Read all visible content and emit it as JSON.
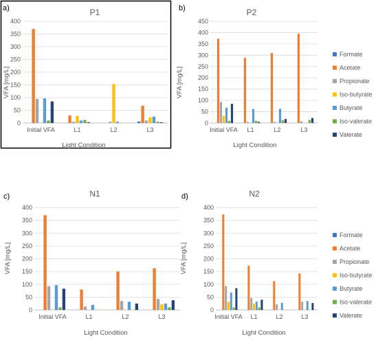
{
  "colors": {
    "Formate": "#4472C4",
    "Acetate": "#ED7D31",
    "Propionate": "#A5A5A5",
    "Iso-butyrate": "#FFC000",
    "Butyrate": "#5B9BD5",
    "Iso-valerate": "#70AD47",
    "Valerate": "#264478"
  },
  "chart_data": [
    {
      "type": "bar",
      "panel_label": "a)",
      "title": "P1",
      "xlabel": "Light Condition",
      "ylabel": "VFA [mg/L]",
      "ylim": [
        0,
        400
      ],
      "yticks": [
        "0",
        "50",
        "100",
        "150",
        "200",
        "250",
        "300",
        "350",
        "400"
      ],
      "categories": [
        "Initial VFA",
        "L1",
        "L2",
        "L3"
      ],
      "legend": "none",
      "series": [
        {
          "name": "Formate",
          "values": [
            0,
            0,
            0,
            6
          ]
        },
        {
          "name": "Acetate",
          "values": [
            370,
            30,
            0,
            68
          ]
        },
        {
          "name": "Propionate",
          "values": [
            95,
            5,
            5,
            10
          ]
        },
        {
          "name": "Iso-butyrate",
          "values": [
            0,
            28,
            153,
            22
          ]
        },
        {
          "name": "Butyrate",
          "values": [
            97,
            10,
            5,
            25
          ]
        },
        {
          "name": "Iso-valerate",
          "values": [
            10,
            12,
            0,
            5
          ]
        },
        {
          "name": "Valerate",
          "values": [
            85,
            3,
            0,
            3
          ]
        }
      ]
    },
    {
      "type": "bar",
      "panel_label": "b)",
      "title": "P2",
      "xlabel": "Light Condition",
      "ylabel": "VFA [mg/L]",
      "ylim": [
        0,
        450
      ],
      "yticks": [
        "0",
        "50",
        "100",
        "150",
        "200",
        "250",
        "300",
        "350",
        "400",
        "450"
      ],
      "categories": [
        "Initial VFA",
        "L1",
        "L2",
        "L3"
      ],
      "legend": "right",
      "series": [
        {
          "name": "Formate",
          "values": [
            0,
            0,
            0,
            0
          ]
        },
        {
          "name": "Acetate",
          "values": [
            373,
            288,
            310,
            395
          ]
        },
        {
          "name": "Propionate",
          "values": [
            93,
            5,
            5,
            8
          ]
        },
        {
          "name": "Iso-butyrate",
          "values": [
            32,
            0,
            0,
            0
          ]
        },
        {
          "name": "Butyrate",
          "values": [
            68,
            62,
            63,
            0
          ]
        },
        {
          "name": "Iso-valerate",
          "values": [
            10,
            10,
            12,
            14
          ]
        },
        {
          "name": "Valerate",
          "values": [
            85,
            5,
            18,
            22
          ]
        }
      ]
    },
    {
      "type": "bar",
      "panel_label": "c)",
      "title": "N1",
      "xlabel": "Light Condition",
      "ylabel": "VFA [mg/L]",
      "ylim": [
        0,
        400
      ],
      "yticks": [
        "0",
        "50",
        "100",
        "150",
        "200",
        "250",
        "300",
        "350",
        "400"
      ],
      "categories": [
        "Initial VFA",
        "L1",
        "L2",
        "L3"
      ],
      "legend": "none",
      "series": [
        {
          "name": "Formate",
          "values": [
            0,
            0,
            0,
            0
          ]
        },
        {
          "name": "Acetate",
          "values": [
            370,
            80,
            150,
            163
          ]
        },
        {
          "name": "Propionate",
          "values": [
            93,
            13,
            35,
            43
          ]
        },
        {
          "name": "Iso-butyrate",
          "values": [
            0,
            0,
            0,
            22
          ]
        },
        {
          "name": "Butyrate",
          "values": [
            97,
            20,
            32,
            25
          ]
        },
        {
          "name": "Iso-valerate",
          "values": [
            10,
            0,
            0,
            10
          ]
        },
        {
          "name": "Valerate",
          "values": [
            83,
            0,
            25,
            38
          ]
        }
      ]
    },
    {
      "type": "bar",
      "panel_label": "d)",
      "title": "N2",
      "xlabel": "Light Condition",
      "ylabel": "VFA [mg/L]",
      "ylim": [
        0,
        400
      ],
      "yticks": [
        "0",
        "50",
        "100",
        "150",
        "200",
        "250",
        "300",
        "350",
        "400"
      ],
      "categories": [
        "Initial VFA",
        "L1",
        "L2",
        "L3"
      ],
      "legend": "right",
      "series": [
        {
          "name": "Formate",
          "values": [
            0,
            0,
            0,
            0
          ]
        },
        {
          "name": "Acetate",
          "values": [
            373,
            173,
            113,
            143
          ]
        },
        {
          "name": "Propionate",
          "values": [
            93,
            47,
            22,
            32
          ]
        },
        {
          "name": "Iso-butyrate",
          "values": [
            32,
            25,
            0,
            0
          ]
        },
        {
          "name": "Butyrate",
          "values": [
            68,
            33,
            28,
            35
          ]
        },
        {
          "name": "Iso-valerate",
          "values": [
            10,
            10,
            0,
            0
          ]
        },
        {
          "name": "Valerate",
          "values": [
            85,
            40,
            0,
            27
          ]
        }
      ]
    }
  ]
}
